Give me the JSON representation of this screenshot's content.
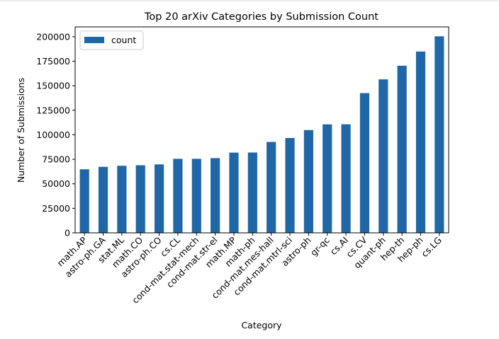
{
  "chart_data": {
    "type": "bar",
    "title": "Top 20 arXiv Categories by Submission Count",
    "xlabel": "Category",
    "ylabel": "Number of Submissions",
    "categories": [
      "math.AP",
      "astro-ph.GA",
      "stat.ML",
      "math.CO",
      "astro-ph.CO",
      "cs.CL",
      "cond-mat.stat-mech",
      "cond-mat.str-el",
      "math.MP",
      "math-ph",
      "cond-mat.mes-hall",
      "cond-mat.mtrl-sci",
      "astro-ph",
      "gr-qc",
      "cs.AI",
      "cs.CV",
      "quant-ph",
      "hep-th",
      "hep-ph",
      "cs.LG"
    ],
    "series": [
      {
        "name": "count",
        "color": "#1f67a6",
        "values": [
          64800,
          67300,
          68400,
          68900,
          69800,
          75500,
          75500,
          76200,
          81800,
          81900,
          92700,
          96700,
          104800,
          110600,
          110700,
          142500,
          156500,
          170400,
          184900,
          200400
        ]
      }
    ],
    "ylim": [
      0,
      210000
    ],
    "yticks": [
      0,
      25000,
      50000,
      75000,
      100000,
      125000,
      150000,
      175000,
      200000
    ],
    "grid": false,
    "legend_position": "top-left"
  }
}
